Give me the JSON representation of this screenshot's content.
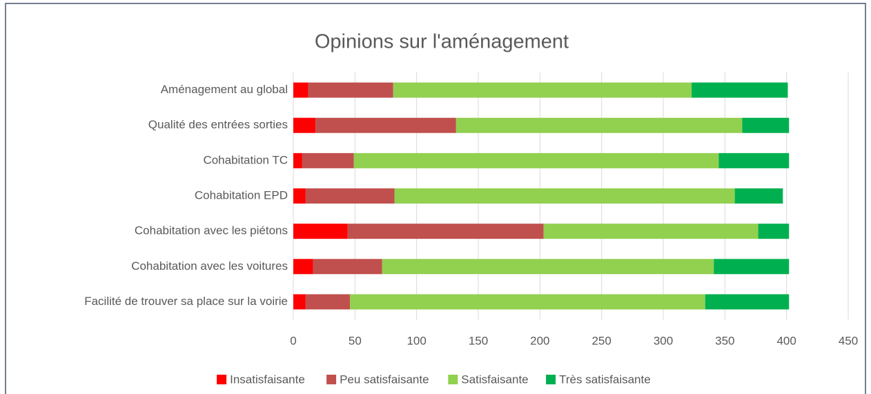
{
  "chart_data": {
    "type": "stacked-bar-horizontal",
    "title": "Opinions sur l'aménagement",
    "categories": [
      "Aménagement au global",
      "Qualité des entrées sorties",
      "Cohabitation TC",
      "Cohabitation EPD",
      "Cohabitation avec les piétons",
      "Cohabitation avec les voitures",
      "Facilité de trouver sa place sur la voirie"
    ],
    "series": [
      {
        "name": "Insatisfaisante",
        "color": "#ff0000",
        "values": [
          12,
          18,
          7,
          10,
          44,
          16,
          10
        ]
      },
      {
        "name": "Peu satisfaisante",
        "color": "#c0504d",
        "values": [
          69,
          114,
          42,
          72,
          159,
          56,
          36
        ]
      },
      {
        "name": "Satisfaisante",
        "color": "#92d050",
        "values": [
          242,
          232,
          296,
          276,
          174,
          269,
          288
        ]
      },
      {
        "name": "Très satisfaisante",
        "color": "#00b050",
        "values": [
          78,
          38,
          57,
          39,
          25,
          61,
          68
        ]
      }
    ],
    "xlim": [
      0,
      450
    ],
    "xticks": [
      0,
      50,
      100,
      150,
      200,
      250,
      300,
      350,
      400,
      450
    ],
    "grid": true,
    "legend": "bottom"
  }
}
